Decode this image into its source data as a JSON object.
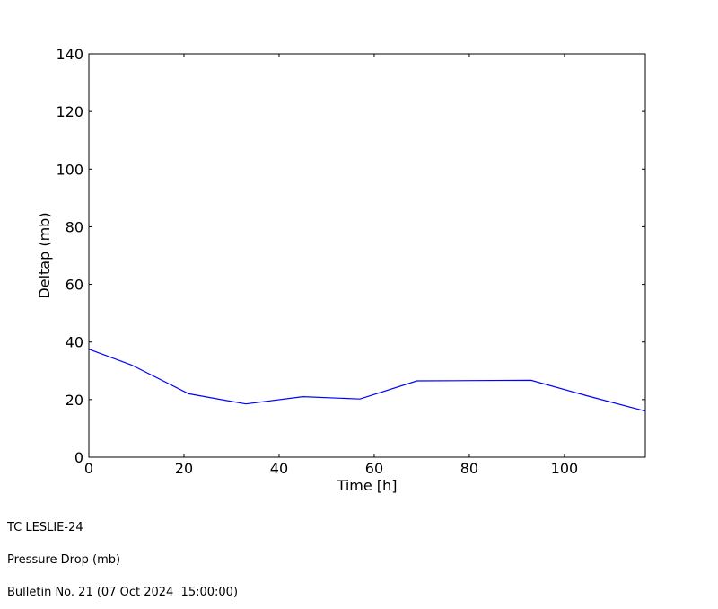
{
  "chart_data": {
    "type": "line",
    "title": "",
    "xlabel": "Time [h]",
    "ylabel": "Deltap (mb)",
    "xlim": [
      0,
      117
    ],
    "ylim": [
      0,
      140
    ],
    "xticks": [
      0,
      20,
      40,
      60,
      80,
      100
    ],
    "yticks": [
      0,
      20,
      40,
      60,
      80,
      100,
      120,
      140
    ],
    "grid": false,
    "series": [
      {
        "color": "#0000ff",
        "x": [
          0,
          9,
          21,
          33,
          45,
          57,
          69,
          81,
          93,
          105,
          117
        ],
        "y": [
          37.5,
          32.0,
          22.0,
          18.5,
          21.0,
          20.2,
          26.5,
          26.6,
          26.7,
          21.2,
          16.0
        ]
      }
    ]
  },
  "footer": {
    "line1": "TC LESLIE-24",
    "line2": "Pressure Drop (mb)",
    "line3": "Bulletin No. 21 (07 Oct 2024  15:00:00)"
  }
}
